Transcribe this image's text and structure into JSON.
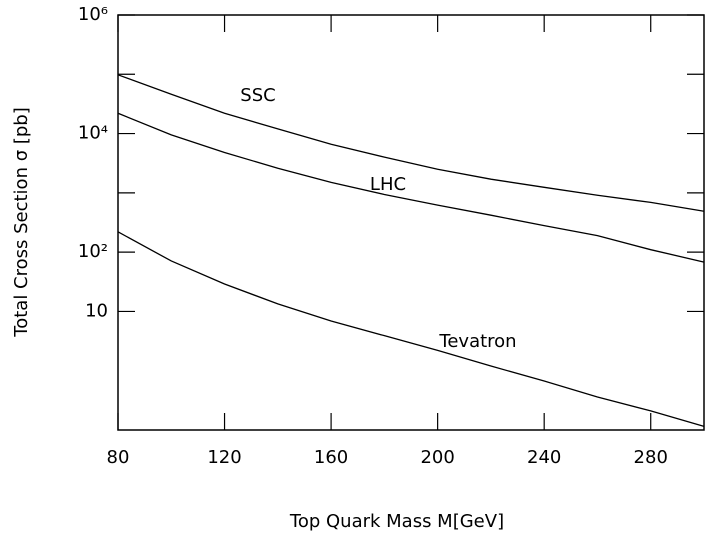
{
  "chart_data": {
    "type": "line",
    "xlabel": "Top Quark Mass M[GeV]",
    "ylabel": "Total Cross Section σ [pb]",
    "x": [
      80,
      100,
      120,
      140,
      160,
      180,
      200,
      220,
      240,
      260,
      280,
      300
    ],
    "series": [
      {
        "name": "SSC",
        "color": "#000000",
        "values": [
          98000,
          46000,
          22000,
          12000,
          6600,
          4000,
          2500,
          1700,
          1240,
          910,
          690,
          490
        ]
      },
      {
        "name": "LHC",
        "color": "#000000",
        "values": [
          22000,
          9500,
          4800,
          2600,
          1500,
          940,
          620,
          420,
          280,
          190,
          110,
          68
        ]
      },
      {
        "name": "Tevatron",
        "color": "#000000",
        "values": [
          220,
          71,
          29,
          13.4,
          6.9,
          3.9,
          2.2,
          1.2,
          0.67,
          0.36,
          0.21,
          0.115
        ]
      }
    ],
    "xlim": [
      80,
      300
    ],
    "xticks": [
      80,
      120,
      160,
      200,
      240,
      280
    ],
    "ylim": [
      0.1,
      1000000
    ],
    "log_y": true,
    "yticks": [
      10,
      {
        "value": 100,
        "label": "10²"
      },
      {
        "value": 10000,
        "label": "10⁴"
      },
      {
        "value": 1000000,
        "label": "10⁶"
      }
    ],
    "yminor_ticks": [
      1000,
      100000
    ],
    "grid": false
  }
}
